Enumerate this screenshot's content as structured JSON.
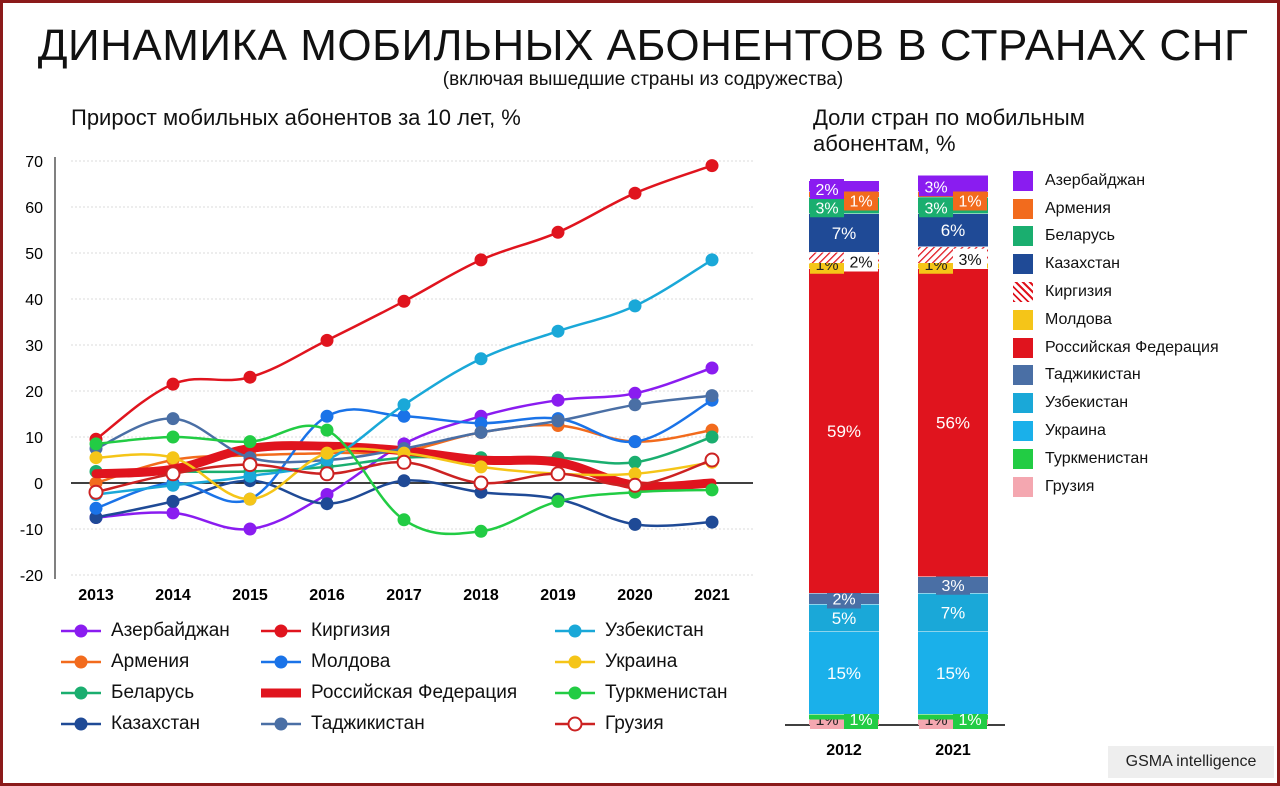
{
  "header": {
    "title": "ДИНАМИКА МОБИЛЬНЫХ АБОНЕНТОВ В СТРАНАХ СНГ",
    "subtitle": "(включая вышедшие страны из содружества)"
  },
  "brand": "GSMA intelligence",
  "chart_data": [
    {
      "type": "line",
      "title": "Прирост мобильных абонентов за 10 лет, %",
      "x": [
        "2013",
        "2014",
        "2015",
        "2016",
        "2017",
        "2018",
        "2019",
        "2020",
        "2021"
      ],
      "ylim": [
        -20,
        70
      ],
      "yticks": [
        -20,
        -10,
        0,
        10,
        20,
        30,
        40,
        50,
        60,
        70
      ],
      "grid": true,
      "legend_position": "bottom",
      "series": [
        {
          "name": "Азербайджан",
          "color": "#8a1cf0",
          "values": [
            -7.5,
            -6.5,
            -10,
            -2.5,
            8.5,
            14.5,
            18,
            19.5,
            25
          ]
        },
        {
          "name": "Армения",
          "color": "#f26b1d",
          "values": [
            0,
            5,
            6,
            6.5,
            7,
            11,
            12.5,
            9,
            11.5
          ]
        },
        {
          "name": "Беларусь",
          "color": "#1aae6f",
          "values": [
            2.5,
            2.5,
            2.5,
            3.5,
            5.5,
            5.5,
            5.5,
            4.5,
            10
          ]
        },
        {
          "name": "Казахстан",
          "color": "#1f4a96",
          "values": [
            -7.5,
            -4,
            0.5,
            -4.5,
            0.5,
            -2,
            -3.5,
            -9,
            -8.5
          ]
        },
        {
          "name": "Киргизия",
          "color": "#e0141e",
          "values": [
            9.5,
            21.5,
            23,
            31,
            39.5,
            48.5,
            54.5,
            63,
            69
          ]
        },
        {
          "name": "Молдова",
          "color": "#1a73e8",
          "values": [
            -5.5,
            0,
            -3.5,
            14.5,
            14.5,
            13,
            14,
            9,
            18
          ]
        },
        {
          "name": "Российская Федерация",
          "color": "#e0141e",
          "values": [
            2,
            3,
            7.5,
            8,
            7,
            5,
            4.5,
            -0.5,
            0
          ],
          "thick": true
        },
        {
          "name": "Таджикистан",
          "color": "#4a6fa5",
          "values": [
            7.5,
            14,
            5.5,
            5,
            7.5,
            11,
            13.5,
            17,
            19
          ]
        },
        {
          "name": "Узбекистан",
          "color": "#1aa8d8",
          "values": [
            -2.5,
            -0.5,
            1.5,
            5,
            17,
            27,
            33,
            38.5,
            48.5
          ]
        },
        {
          "name": "Украина",
          "color": "#f5c518",
          "values": [
            5.5,
            5.5,
            -3.5,
            6.5,
            6.5,
            3.5,
            2,
            2,
            4.5
          ]
        },
        {
          "name": "Туркменистан",
          "color": "#22cc44",
          "values": [
            8.5,
            10,
            9,
            11.5,
            -8,
            -10.5,
            -4,
            -2,
            -1.5
          ]
        },
        {
          "name": "Грузия",
          "color": "#cc2222",
          "values": [
            -2,
            2,
            4,
            2,
            4.5,
            0,
            2,
            -0.5,
            5
          ],
          "hollow": true
        }
      ]
    },
    {
      "type": "bar",
      "stacked": true,
      "title": "Доли стран по мобильным абонентам, %",
      "categories": [
        "2012",
        "2021"
      ],
      "legend_position": "right",
      "series": [
        {
          "name": "Грузия",
          "color": "#f4a7b0",
          "values": [
            1,
            1
          ],
          "labels": [
            "1%",
            "1%"
          ]
        },
        {
          "name": "Туркменистан",
          "color": "#22cc44",
          "values": [
            1,
            1
          ],
          "labels": [
            "1%",
            "1%"
          ]
        },
        {
          "name": "Украина",
          "color": "#1ab0ea",
          "values": [
            15,
            15
          ],
          "labels": [
            "15%",
            "15%"
          ]
        },
        {
          "name": "Узбекистан",
          "color": "#1aa8d8",
          "values": [
            5,
            7
          ],
          "labels": [
            "5%",
            "7%"
          ]
        },
        {
          "name": "Таджикистан",
          "color": "#4a6fa5",
          "values": [
            2,
            3
          ],
          "labels": [
            "2%",
            "3%"
          ]
        },
        {
          "name": "Российская Федерация",
          "color": "#e0141e",
          "values": [
            59,
            56
          ],
          "labels": [
            "59%",
            "56%"
          ]
        },
        {
          "name": "Молдова",
          "color": "#f5c518",
          "values": [
            1,
            1
          ],
          "labels": [
            "1%",
            "1%"
          ]
        },
        {
          "name": "Киргизия",
          "color": "#e0141e",
          "values": [
            2,
            3
          ],
          "labels": [
            "2%",
            "3%"
          ],
          "pattern": "hatch"
        },
        {
          "name": "Казахстан",
          "color": "#1f4a96",
          "values": [
            7,
            6
          ],
          "labels": [
            "7%",
            "6%"
          ]
        },
        {
          "name": "Беларусь",
          "color": "#1aae6f",
          "values": [
            3,
            3
          ],
          "labels": [
            "3%",
            "3%"
          ]
        },
        {
          "name": "Армения",
          "color": "#f26b1d",
          "values": [
            1,
            1
          ],
          "labels": [
            "1%",
            "1%"
          ]
        },
        {
          "name": "Азербайджан",
          "color": "#8a1cf0",
          "values": [
            2,
            3
          ],
          "labels": [
            "2%",
            "3%"
          ]
        }
      ]
    }
  ]
}
